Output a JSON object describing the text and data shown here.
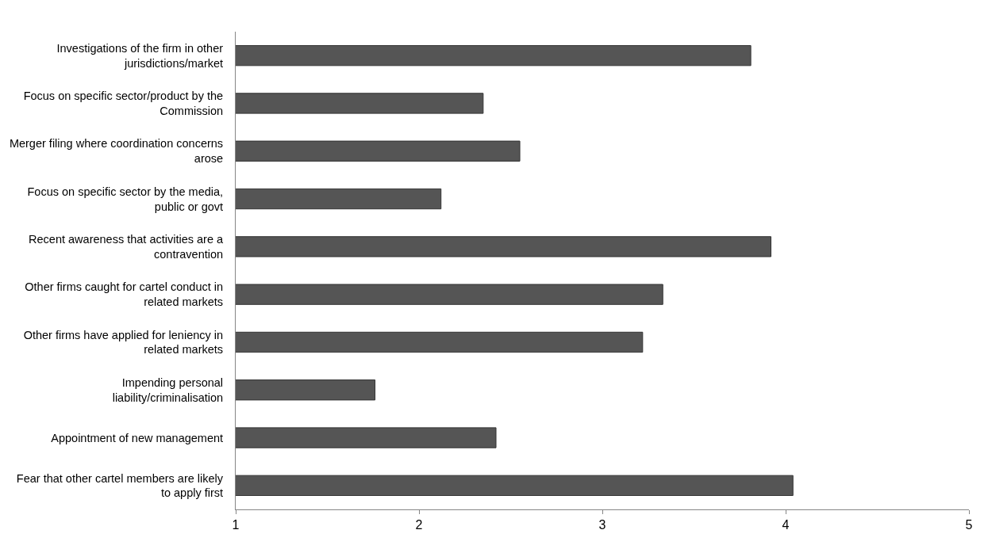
{
  "chart_data": {
    "type": "bar",
    "orientation": "horizontal",
    "categories": [
      "Investigations of the firm in other jurisdictions/market",
      "Focus on specific sector/product by the Commission",
      "Merger filing where coordination concerns arose",
      "Focus on specific sector by the media, public or govt",
      "Recent awareness that activities are a contravention",
      "Other firms caught for cartel conduct in related markets",
      "Other firms have applied for leniency in related markets",
      "Impending personal liability/criminalisation",
      "Appointment of new management",
      "Fear that other cartel members are likely to apply first"
    ],
    "values": [
      3.81,
      2.35,
      2.55,
      2.12,
      3.92,
      3.33,
      3.22,
      1.76,
      2.42,
      4.04
    ],
    "color": "#555555",
    "xlim": [
      1,
      5
    ],
    "xticks": [
      1,
      2,
      3,
      4,
      5
    ],
    "grid": false
  }
}
